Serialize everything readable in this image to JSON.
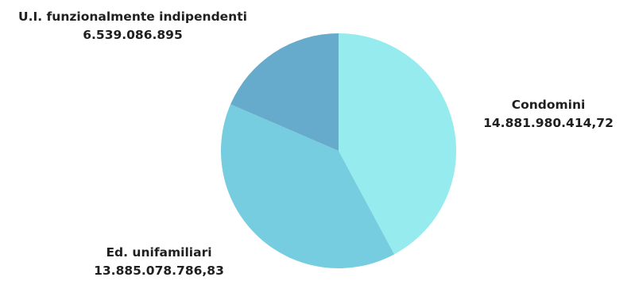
{
  "chart_data": {
    "type": "pie",
    "categories": [
      "Condomini",
      "Ed. unifamiliari",
      "U.I. funzionalmente indipendenti"
    ],
    "values": [
      14881980414.72,
      13885078786.83,
      6539086895
    ],
    "value_labels": [
      "14.881.980.414,72",
      "13.885.078.786,83",
      "6.539.086.895"
    ],
    "colors": [
      "#95ebed",
      "#76cde0",
      "#67abcc"
    ],
    "start_angle": "12 o'clock",
    "direction": "clockwise"
  }
}
